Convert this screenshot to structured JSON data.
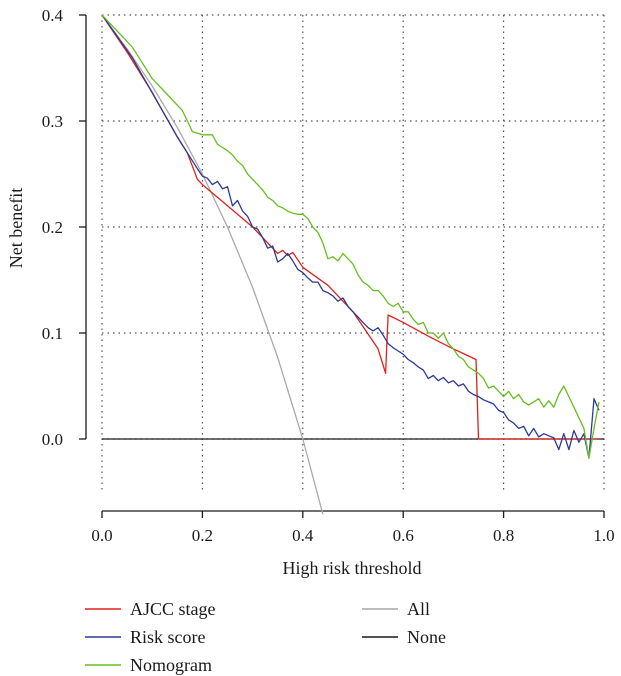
{
  "chart_data": {
    "type": "line",
    "xlabel": "High risk threshold",
    "ylabel": "Net benefit",
    "xlim": [
      0,
      1.0
    ],
    "ylim": [
      -0.08,
      0.4
    ],
    "x_ticks": [
      "0.0",
      "0.2",
      "0.4",
      "0.6",
      "0.8",
      "1.0"
    ],
    "y_ticks": [
      "0.0",
      "0.1",
      "0.2",
      "0.3",
      "0.4"
    ],
    "grid": true,
    "legend_position": "bottom",
    "series": [
      {
        "name": "AJCC stage",
        "color": "#e0211b",
        "x": [
          0.0,
          0.05,
          0.1,
          0.15,
          0.17,
          0.19,
          0.2,
          0.25,
          0.3,
          0.35,
          0.36,
          0.37,
          0.38,
          0.4,
          0.45,
          0.5,
          0.55,
          0.565,
          0.57,
          0.6,
          0.65,
          0.7,
          0.745,
          0.75,
          0.8,
          0.85,
          0.9,
          0.95,
          0.99
        ],
        "values": [
          0.4,
          0.365,
          0.327,
          0.285,
          0.27,
          0.245,
          0.24,
          0.22,
          0.2,
          0.175,
          0.178,
          0.173,
          0.176,
          0.162,
          0.145,
          0.12,
          0.085,
          0.062,
          0.117,
          0.11,
          0.097,
          0.085,
          0.075,
          0.0,
          0.0,
          0.0,
          0.0,
          0.0,
          0.0
        ]
      },
      {
        "name": "Risk score",
        "color": "#2b3a96",
        "x": [
          0.0,
          0.03,
          0.06,
          0.09,
          0.12,
          0.15,
          0.17,
          0.19,
          0.2,
          0.21,
          0.22,
          0.23,
          0.24,
          0.25,
          0.26,
          0.27,
          0.28,
          0.29,
          0.3,
          0.31,
          0.32,
          0.33,
          0.34,
          0.35,
          0.36,
          0.37,
          0.38,
          0.39,
          0.4,
          0.41,
          0.42,
          0.43,
          0.44,
          0.45,
          0.46,
          0.47,
          0.48,
          0.49,
          0.5,
          0.51,
          0.52,
          0.53,
          0.54,
          0.55,
          0.56,
          0.57,
          0.58,
          0.59,
          0.6,
          0.61,
          0.62,
          0.63,
          0.64,
          0.65,
          0.66,
          0.67,
          0.68,
          0.69,
          0.7,
          0.71,
          0.72,
          0.73,
          0.74,
          0.75,
          0.76,
          0.77,
          0.78,
          0.79,
          0.8,
          0.81,
          0.82,
          0.83,
          0.84,
          0.85,
          0.86,
          0.87,
          0.88,
          0.89,
          0.9,
          0.91,
          0.92,
          0.93,
          0.94,
          0.95,
          0.96,
          0.97,
          0.98,
          0.99
        ],
        "values": [
          0.4,
          0.38,
          0.36,
          0.335,
          0.31,
          0.285,
          0.27,
          0.255,
          0.248,
          0.246,
          0.24,
          0.243,
          0.236,
          0.238,
          0.22,
          0.225,
          0.215,
          0.21,
          0.2,
          0.198,
          0.19,
          0.18,
          0.182,
          0.167,
          0.17,
          0.175,
          0.168,
          0.16,
          0.157,
          0.152,
          0.148,
          0.148,
          0.14,
          0.138,
          0.135,
          0.13,
          0.133,
          0.125,
          0.12,
          0.115,
          0.11,
          0.105,
          0.102,
          0.105,
          0.098,
          0.09,
          0.086,
          0.083,
          0.08,
          0.075,
          0.072,
          0.068,
          0.065,
          0.057,
          0.06,
          0.055,
          0.058,
          0.053,
          0.055,
          0.05,
          0.052,
          0.045,
          0.042,
          0.04,
          0.037,
          0.035,
          0.033,
          0.027,
          0.025,
          0.018,
          0.015,
          0.01,
          0.012,
          0.003,
          0.01,
          0.002,
          0.005,
          0.003,
          0.001,
          -0.01,
          0.005,
          -0.01,
          0.008,
          -0.003,
          0.005,
          -0.018,
          0.038,
          0.027
        ]
      },
      {
        "name": "Nomogram",
        "color": "#66bf1f",
        "x": [
          0.0,
          0.03,
          0.06,
          0.08,
          0.1,
          0.13,
          0.16,
          0.18,
          0.2,
          0.22,
          0.23,
          0.24,
          0.25,
          0.26,
          0.27,
          0.28,
          0.29,
          0.3,
          0.31,
          0.32,
          0.33,
          0.34,
          0.35,
          0.36,
          0.37,
          0.38,
          0.39,
          0.4,
          0.41,
          0.42,
          0.43,
          0.44,
          0.45,
          0.46,
          0.47,
          0.48,
          0.49,
          0.5,
          0.51,
          0.52,
          0.53,
          0.54,
          0.55,
          0.56,
          0.57,
          0.58,
          0.59,
          0.6,
          0.61,
          0.62,
          0.63,
          0.64,
          0.65,
          0.66,
          0.67,
          0.68,
          0.69,
          0.7,
          0.71,
          0.72,
          0.73,
          0.74,
          0.75,
          0.76,
          0.77,
          0.78,
          0.79,
          0.8,
          0.81,
          0.82,
          0.83,
          0.84,
          0.85,
          0.86,
          0.87,
          0.88,
          0.89,
          0.9,
          0.91,
          0.92,
          0.93,
          0.94,
          0.95,
          0.96,
          0.97,
          0.98,
          0.99
        ],
        "values": [
          0.4,
          0.385,
          0.37,
          0.355,
          0.34,
          0.325,
          0.31,
          0.29,
          0.287,
          0.287,
          0.278,
          0.275,
          0.272,
          0.268,
          0.262,
          0.258,
          0.25,
          0.245,
          0.24,
          0.235,
          0.228,
          0.225,
          0.22,
          0.218,
          0.215,
          0.213,
          0.212,
          0.212,
          0.208,
          0.2,
          0.195,
          0.185,
          0.17,
          0.172,
          0.168,
          0.175,
          0.17,
          0.165,
          0.155,
          0.148,
          0.145,
          0.14,
          0.14,
          0.135,
          0.128,
          0.125,
          0.128,
          0.12,
          0.12,
          0.113,
          0.108,
          0.11,
          0.1,
          0.1,
          0.095,
          0.1,
          0.09,
          0.085,
          0.078,
          0.075,
          0.068,
          0.065,
          0.062,
          0.057,
          0.048,
          0.05,
          0.045,
          0.04,
          0.045,
          0.038,
          0.042,
          0.035,
          0.032,
          0.035,
          0.038,
          0.03,
          0.036,
          0.03,
          0.042,
          0.05,
          0.04,
          0.03,
          0.02,
          0.01,
          -0.018,
          0.01,
          0.035
        ]
      },
      {
        "name": "All",
        "color": "#a9a9a9",
        "x": [
          0.0,
          0.05,
          0.1,
          0.15,
          0.2,
          0.25,
          0.3,
          0.35,
          0.4,
          0.44
        ],
        "values": [
          0.4,
          0.368,
          0.333,
          0.294,
          0.25,
          0.2,
          0.143,
          0.077,
          0.0,
          -0.071
        ]
      },
      {
        "name": "None",
        "color": "#1a1a1a",
        "x": [
          0.0,
          1.0
        ],
        "values": [
          0.0,
          0.0
        ]
      }
    ]
  }
}
